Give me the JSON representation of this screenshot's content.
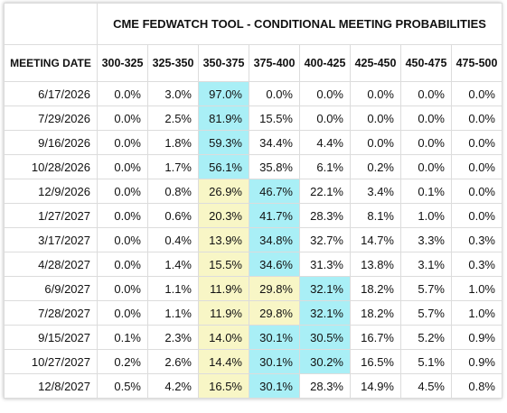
{
  "header": {
    "title": "CME FEDWATCH TOOL - CONDITIONAL MEETING PROBABILITIES"
  },
  "table": {
    "columns": [
      "MEETING DATE",
      "300-325",
      "325-350",
      "350-375",
      "375-400",
      "400-425",
      "425-450",
      "450-475",
      "475-500"
    ],
    "rows": [
      [
        "6/17/2026",
        "0.0%",
        "3.0%",
        "97.0%",
        "0.0%",
        "0.0%",
        "0.0%",
        "0.0%",
        "0.0%"
      ],
      [
        "7/29/2026",
        "0.0%",
        "2.5%",
        "81.9%",
        "15.5%",
        "0.0%",
        "0.0%",
        "0.0%",
        "0.0%"
      ],
      [
        "9/16/2026",
        "0.0%",
        "1.8%",
        "59.3%",
        "34.4%",
        "4.4%",
        "0.0%",
        "0.0%",
        "0.0%"
      ],
      [
        "10/28/2026",
        "0.0%",
        "1.7%",
        "56.1%",
        "35.8%",
        "6.1%",
        "0.2%",
        "0.0%",
        "0.0%"
      ],
      [
        "12/9/2026",
        "0.0%",
        "0.8%",
        "26.9%",
        "46.7%",
        "22.1%",
        "3.4%",
        "0.1%",
        "0.0%"
      ],
      [
        "1/27/2027",
        "0.0%",
        "0.6%",
        "20.3%",
        "41.7%",
        "28.3%",
        "8.1%",
        "1.0%",
        "0.0%"
      ],
      [
        "3/17/2027",
        "0.0%",
        "0.4%",
        "13.9%",
        "34.8%",
        "32.7%",
        "14.7%",
        "3.3%",
        "0.3%"
      ],
      [
        "4/28/2027",
        "0.0%",
        "1.4%",
        "15.5%",
        "34.6%",
        "31.3%",
        "13.8%",
        "3.1%",
        "0.3%"
      ],
      [
        "6/9/2027",
        "0.0%",
        "1.1%",
        "11.9%",
        "29.8%",
        "32.1%",
        "18.2%",
        "5.7%",
        "1.0%"
      ],
      [
        "7/28/2027",
        "0.0%",
        "1.1%",
        "11.9%",
        "29.8%",
        "32.1%",
        "18.2%",
        "5.7%",
        "1.0%"
      ],
      [
        "9/15/2027",
        "0.1%",
        "2.3%",
        "14.0%",
        "30.1%",
        "30.5%",
        "16.7%",
        "5.2%",
        "0.9%"
      ],
      [
        "10/27/2027",
        "0.2%",
        "2.6%",
        "14.4%",
        "30.1%",
        "30.2%",
        "16.5%",
        "5.1%",
        "0.9%"
      ],
      [
        "12/8/2027",
        "0.5%",
        "4.2%",
        "16.5%",
        "30.1%",
        "28.3%",
        "14.9%",
        "4.5%",
        "0.8%"
      ]
    ]
  }
}
